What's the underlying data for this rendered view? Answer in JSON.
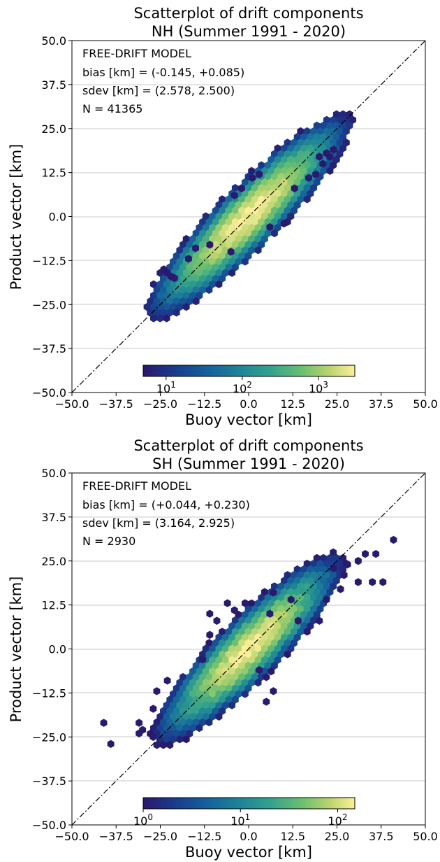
{
  "chart_data": [
    {
      "type": "scatter",
      "title": "Scatterplot of drift components",
      "subtitle": "NH (Summer 1991 - 2020)",
      "xlabel": "Buoy vector [km]",
      "ylabel": "Product vector [km]",
      "xlim": [
        -50,
        50
      ],
      "ylim": [
        -50,
        50
      ],
      "x_ticks": [
        "−50.0",
        "−37.5",
        "−25.0",
        "−12.5",
        "0.0",
        "12.5",
        "25.0",
        "37.5",
        "50.0"
      ],
      "y_ticks": [
        "−50.0",
        "−37.5",
        "−25.0",
        "−12.5",
        "0.0",
        "12.5",
        "25.0",
        "37.5",
        "50.0"
      ],
      "grid": "horizontal",
      "reference_line": "y = x (dash-dot)",
      "annotations": [
        "FREE-DRIFT MODEL",
        "bias [km] = (-0.145, +0.085)",
        "sdev [km] = (2.578, 2.500)",
        "N = 41365"
      ],
      "colorbar": {
        "scale": "log",
        "ticks": [
          "10^1",
          "10^2",
          "10^3"
        ],
        "min": 5,
        "max": 3000,
        "colormap": "haline"
      },
      "density": {
        "type": "hexbin",
        "bias": [
          -0.145,
          0.085
        ],
        "sdev": [
          2.578,
          2.5
        ],
        "n": 41365
      },
      "outliers": [
        [
          -24,
          -15
        ],
        [
          -22,
          -17
        ],
        [
          -21,
          -17.5
        ],
        [
          -23,
          -16
        ],
        [
          20,
          17
        ],
        [
          22,
          18
        ],
        [
          24,
          19
        ],
        [
          23,
          17
        ],
        [
          21,
          15
        ],
        [
          19,
          12
        ],
        [
          17,
          11
        ],
        [
          13,
          8
        ],
        [
          10,
          -2
        ],
        [
          6,
          -3
        ],
        [
          -5,
          -10
        ],
        [
          -11,
          -8
        ],
        [
          -15,
          -9
        ],
        [
          -17,
          -12
        ],
        [
          3,
          12
        ],
        [
          -2,
          8
        ],
        [
          1,
          11
        ],
        [
          -4,
          6
        ]
      ]
    },
    {
      "type": "scatter",
      "title": "Scatterplot of drift components",
      "subtitle": "SH (Summer 1991 - 2020)",
      "xlabel": "Buoy vector [km]",
      "ylabel": "Product vector [km]",
      "xlim": [
        -50,
        50
      ],
      "ylim": [
        -50,
        50
      ],
      "x_ticks": [
        "−50.0",
        "−37.5",
        "−25.0",
        "−12.5",
        "0.0",
        "12.5",
        "25.0",
        "37.5",
        "50.0"
      ],
      "y_ticks": [
        "−50.0",
        "−37.5",
        "−25.0",
        "−12.5",
        "0.0",
        "12.5",
        "25.0",
        "37.5",
        "50.0"
      ],
      "grid": "horizontal",
      "reference_line": "y = x (dash-dot)",
      "annotations": [
        "FREE-DRIFT MODEL",
        "bias [km] = (+0.044, +0.230)",
        "sdev [km] = (3.164, 2.925)",
        "N = 2930"
      ],
      "colorbar": {
        "scale": "log",
        "ticks": [
          "10^0",
          "10^1",
          "10^2"
        ],
        "min": 1,
        "max": 150,
        "colormap": "haline"
      },
      "density": {
        "type": "hexbin",
        "bias": [
          0.044,
          0.23
        ],
        "sdev": [
          3.164,
          2.925
        ],
        "n": 2930
      },
      "outliers": [
        [
          41,
          31
        ],
        [
          33,
          27
        ],
        [
          31,
          25
        ],
        [
          36,
          27
        ],
        [
          28,
          24
        ],
        [
          31,
          19
        ],
        [
          35,
          19
        ],
        [
          38,
          19
        ],
        [
          27,
          21
        ],
        [
          26,
          17
        ],
        [
          24,
          23
        ],
        [
          20,
          8
        ],
        [
          12,
          14
        ],
        [
          14,
          8
        ],
        [
          7,
          16
        ],
        [
          6,
          10
        ],
        [
          -11,
          4
        ],
        [
          -13,
          -3
        ],
        [
          -23,
          -9
        ],
        [
          -26,
          -12
        ],
        [
          -27,
          -17
        ],
        [
          -31,
          -21
        ],
        [
          -30,
          -23
        ],
        [
          -31,
          -24
        ],
        [
          -27,
          -25
        ],
        [
          -41,
          -21
        ],
        [
          -39,
          -27
        ],
        [
          5,
          -8
        ],
        [
          7,
          -12
        ],
        [
          -9,
          8
        ],
        [
          -1,
          13
        ],
        [
          -4,
          11
        ],
        [
          -6,
          13
        ],
        [
          -11,
          10
        ],
        [
          3,
          -6
        ],
        [
          5,
          -15
        ],
        [
          22,
          14
        ]
      ]
    }
  ]
}
